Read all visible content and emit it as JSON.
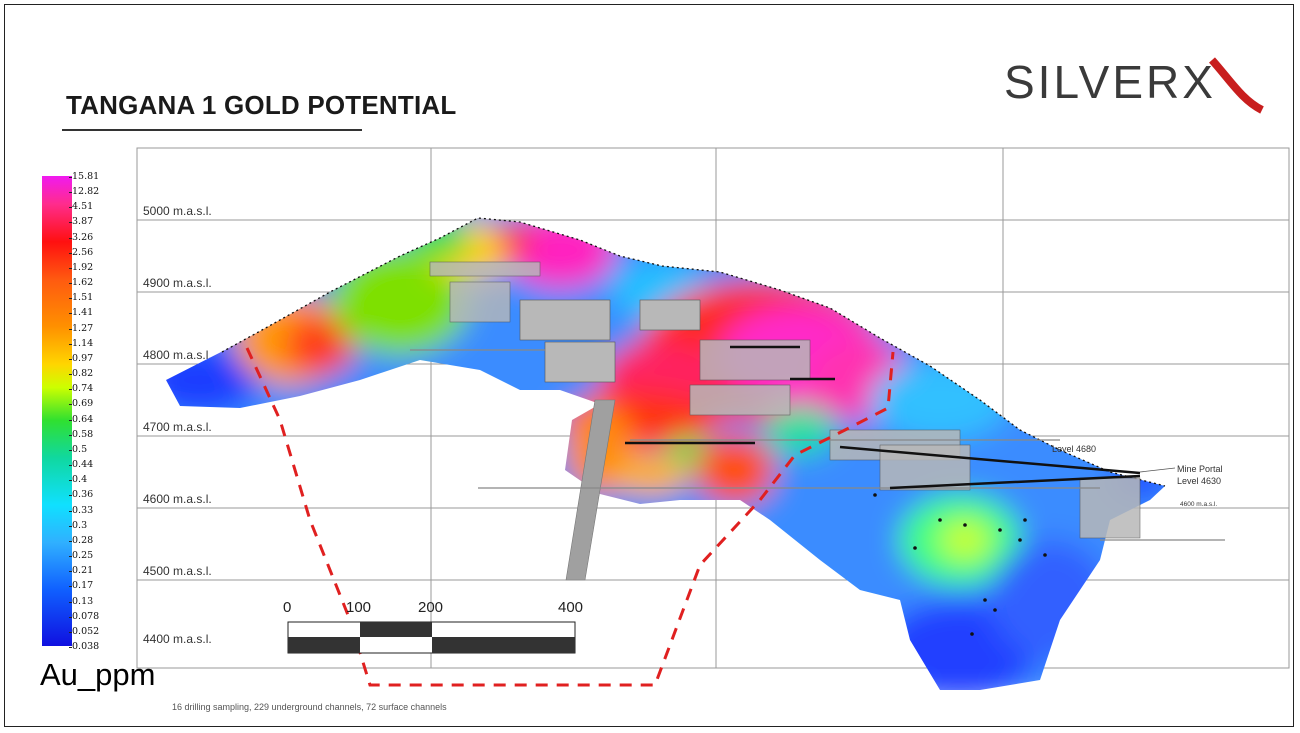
{
  "slide": {
    "title": "TANGANA 1 GOLD POTENTIAL",
    "logo_text": "SILVERX",
    "footnote": "16 drilling sampling, 229 underground channels, 72 surface channels"
  },
  "legend": {
    "unit": "Au_ppm",
    "ticks": [
      "15.81",
      "12.82",
      "4.51",
      "3.87",
      "3.26",
      "2.56",
      "1.92",
      "1.62",
      "1.51",
      "1.41",
      "1.27",
      "1.14",
      "0.97",
      "0.82",
      "0.74",
      "0.69",
      "0.64",
      "0.58",
      "0.5",
      "0.44",
      "0.4",
      "0.36",
      "0.33",
      "0.3",
      "0.28",
      "0.25",
      "0.21",
      "0.17",
      "0.13",
      "0.078",
      "0.052",
      "0.038"
    ]
  },
  "section": {
    "elevation_labels": [
      "5000 m.a.s.l.",
      "4900 m.a.s.l.",
      "4800 m.a.s.l.",
      "4700 m.a.s.l.",
      "4600 m.a.s.l.",
      "4500 m.a.s.l.",
      "4400 m.a.s.l."
    ],
    "annotations": {
      "level_4680": "Level 4680",
      "mine_portal": "Mine Portal",
      "level_4630": "Level 4630",
      "level_4600": "4600 m.a.s.l."
    },
    "scale_bar": {
      "labels": [
        "0",
        "100",
        "200",
        "400"
      ]
    }
  },
  "colors": {
    "potential_outline": "#e02020",
    "workings": "#b0b0b0",
    "grid": "#9a9a9a"
  }
}
